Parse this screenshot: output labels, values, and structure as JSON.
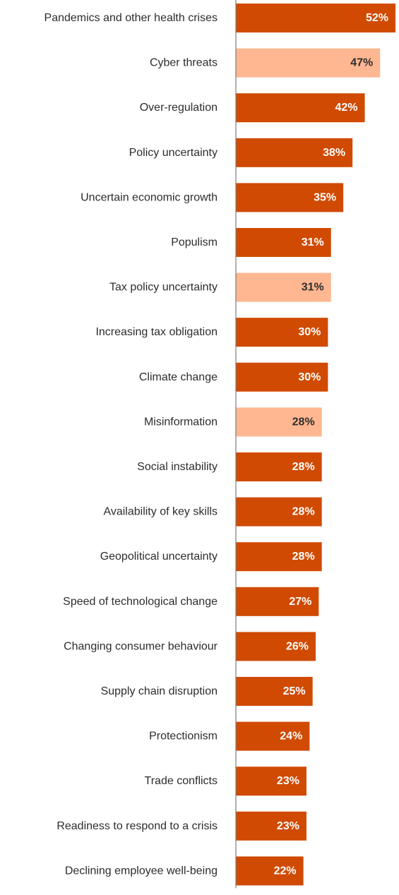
{
  "chart_data": {
    "type": "bar",
    "orientation": "horizontal",
    "categories": [
      "Pandemics and other health crises",
      "Cyber threats",
      "Over-regulation",
      "Policy uncertainty",
      "Uncertain economic growth",
      "Populism",
      "Tax policy uncertainty",
      "Increasing tax obligation",
      "Climate change",
      "Misinformation",
      "Social instability",
      "Availability of key skills",
      "Geopolitical uncertainty",
      "Speed of technological change",
      "Changing consumer behaviour",
      "Supply chain disruption",
      "Protectionism",
      "Trade conflicts",
      "Readiness to respond to a crisis",
      "Declining employee well-being"
    ],
    "values": [
      52,
      47,
      42,
      38,
      35,
      31,
      31,
      30,
      30,
      28,
      28,
      28,
      28,
      27,
      26,
      25,
      24,
      23,
      23,
      22
    ],
    "value_labels": [
      "52%",
      "47%",
      "42%",
      "38%",
      "35%",
      "31%",
      "31%",
      "30%",
      "30%",
      "28%",
      "28%",
      "28%",
      "28%",
      "27%",
      "26%",
      "25%",
      "24%",
      "23%",
      "23%",
      "22%"
    ],
    "highlighted": [
      false,
      true,
      false,
      false,
      false,
      false,
      true,
      false,
      false,
      true,
      false,
      false,
      false,
      false,
      false,
      false,
      false,
      false,
      false,
      false
    ],
    "title": "",
    "xlabel": "",
    "ylabel": "",
    "xlim": [
      0,
      52
    ],
    "grid": false,
    "legend": "none",
    "colors": {
      "bar": "#d04a02",
      "bar_highlight": "#feb791",
      "label_on_bar": "#ffffff",
      "label_on_highlight": "#2d2d2d",
      "category_text": "#2d2d2d",
      "axis_line": "#7d7d7d"
    }
  }
}
